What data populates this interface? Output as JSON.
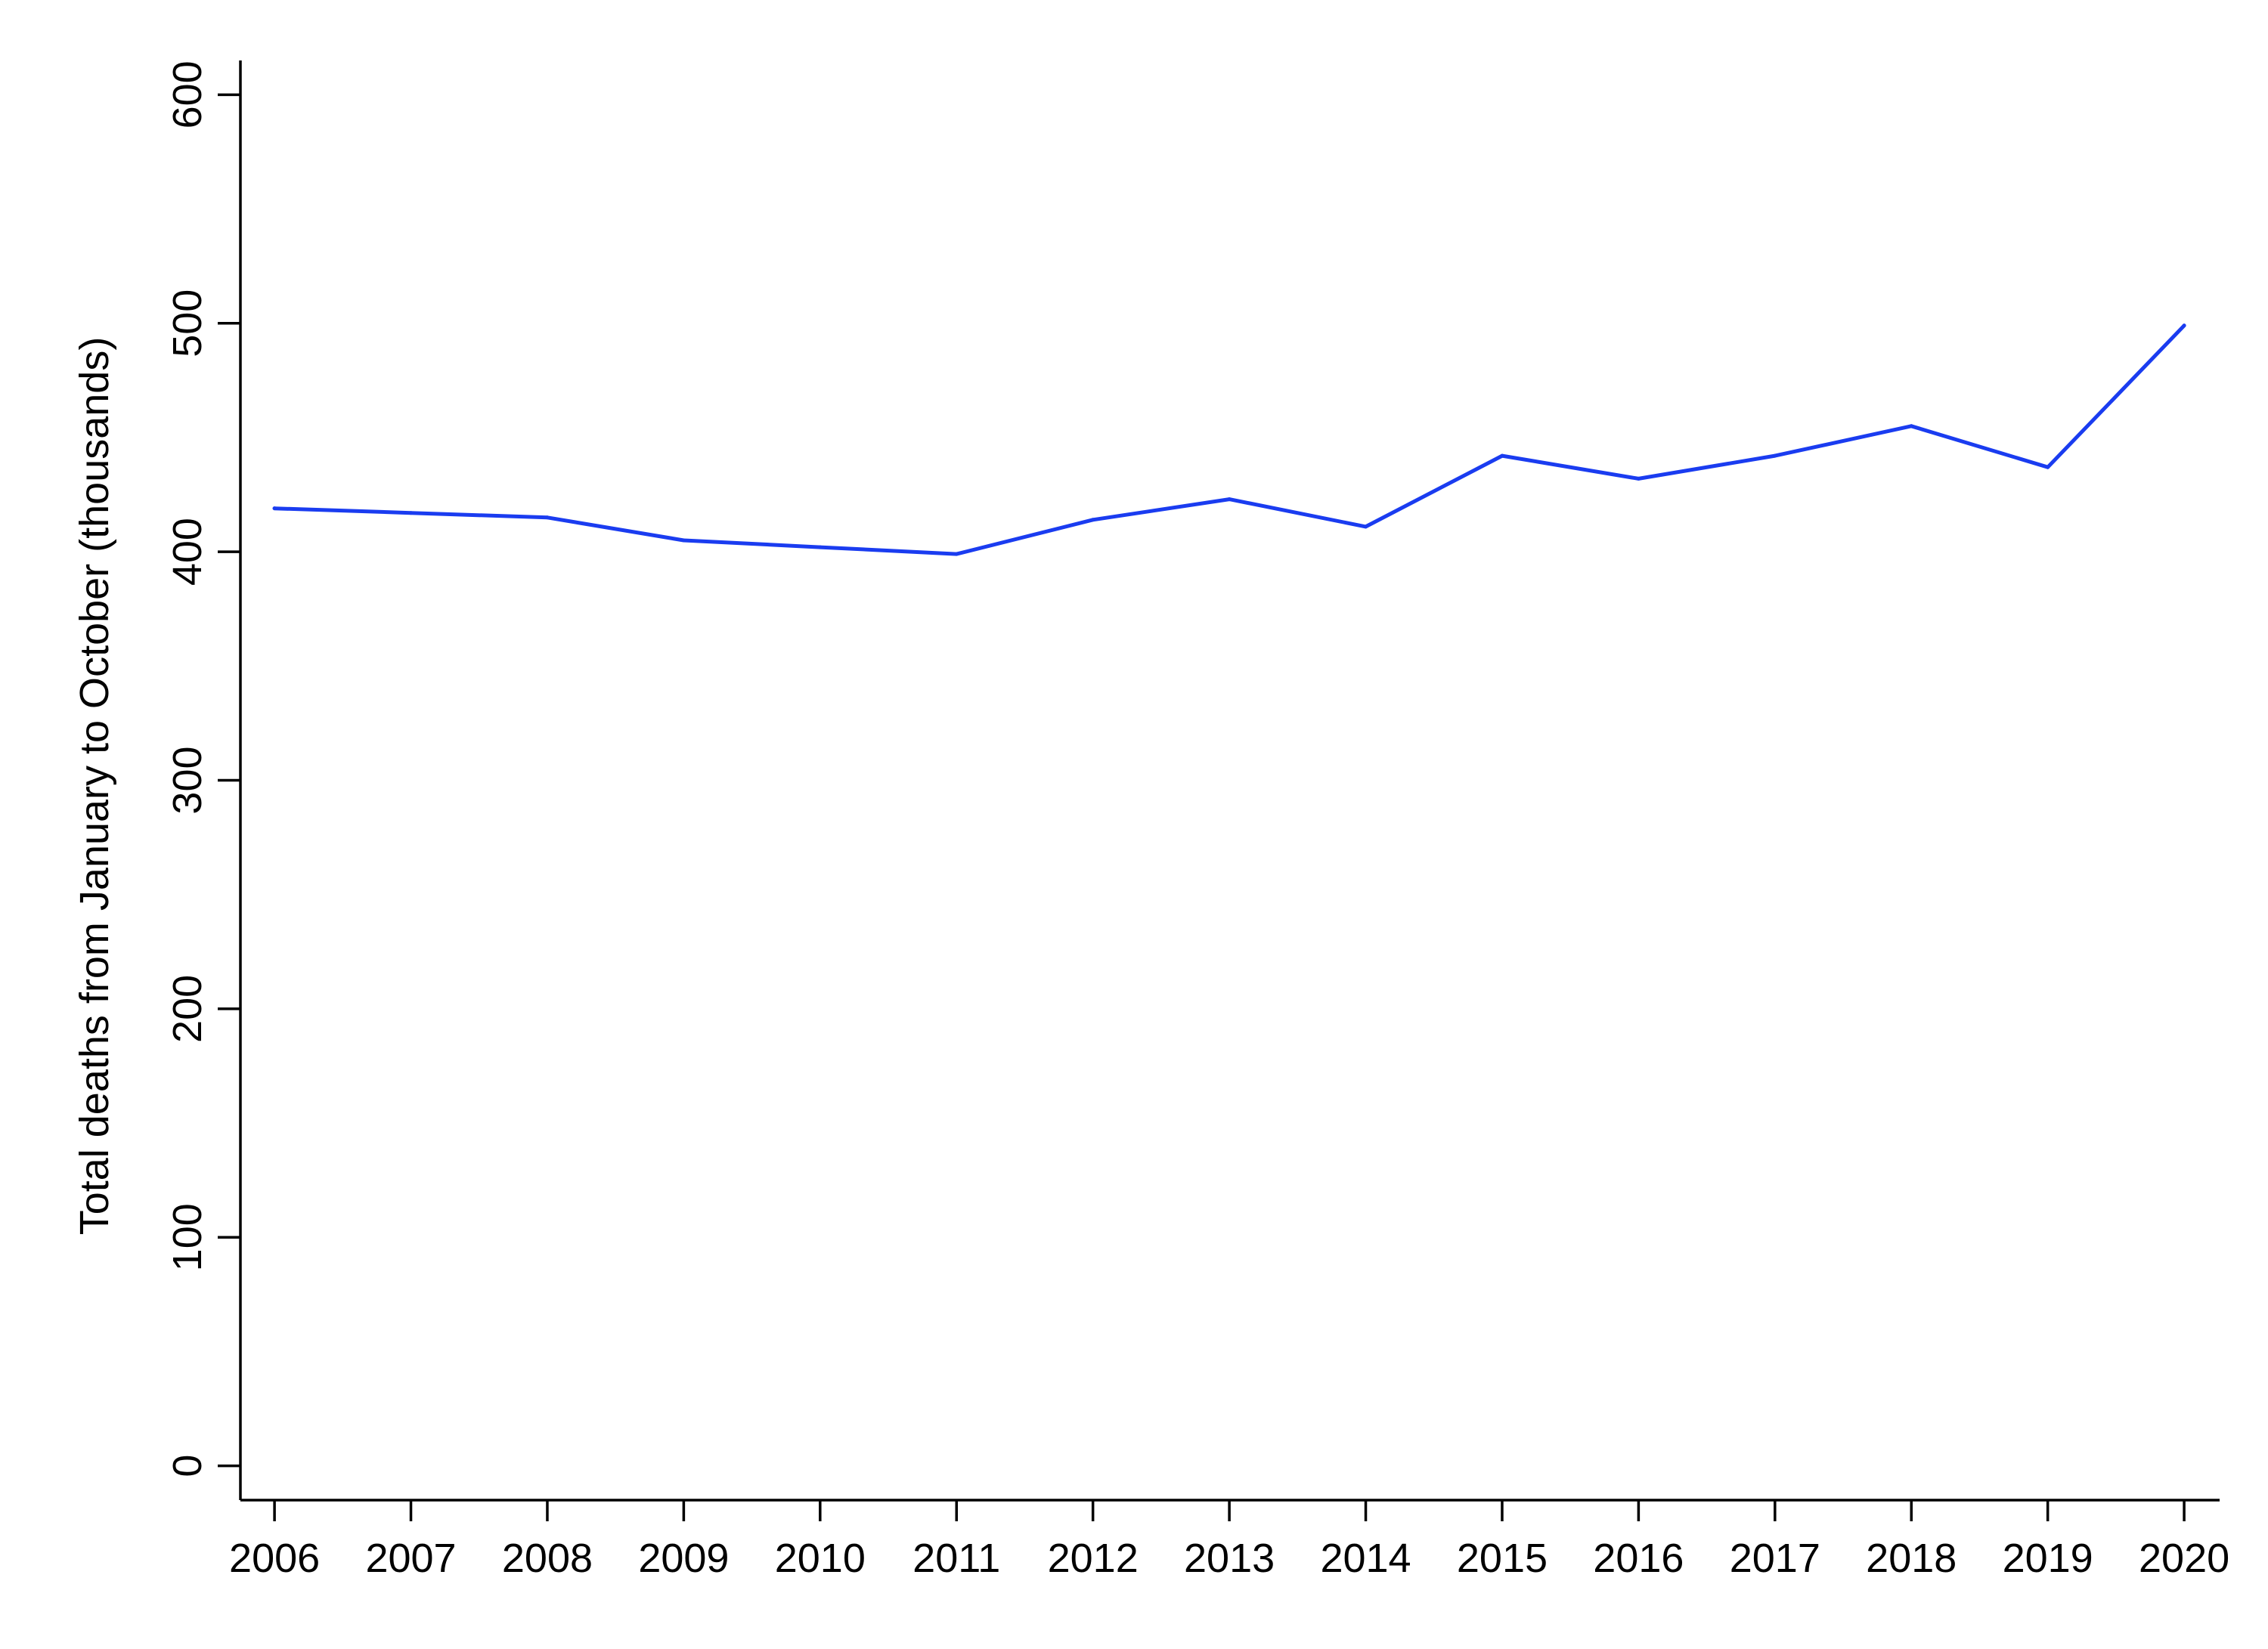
{
  "chart_data": {
    "type": "line",
    "title": "",
    "xlabel": "",
    "ylabel": "Total deaths from January to October (thousands)",
    "x": [
      2006,
      2007,
      2008,
      2009,
      2010,
      2011,
      2012,
      2013,
      2014,
      2015,
      2016,
      2017,
      2018,
      2019,
      2020
    ],
    "x_tick_labels": [
      "2006",
      "2007",
      "2008",
      "2009",
      "2010",
      "2011",
      "2012",
      "2013",
      "2014",
      "2015",
      "2016",
      "2017",
      "2018",
      "2019",
      "2020"
    ],
    "y_ticks": [
      0,
      100,
      200,
      300,
      400,
      500,
      600
    ],
    "y_tick_labels": [
      "0",
      "100",
      "200",
      "300",
      "400",
      "500",
      "600"
    ],
    "xlim": [
      2005.75,
      2020.26
    ],
    "ylim": [
      -15,
      615
    ],
    "grid": false,
    "legend": "none",
    "series": [
      {
        "color": "#1a3cf0",
        "values": [
          419,
          417,
          415,
          405,
          402,
          399,
          414,
          423,
          411,
          442,
          432,
          442,
          455,
          437,
          499
        ]
      }
    ]
  }
}
